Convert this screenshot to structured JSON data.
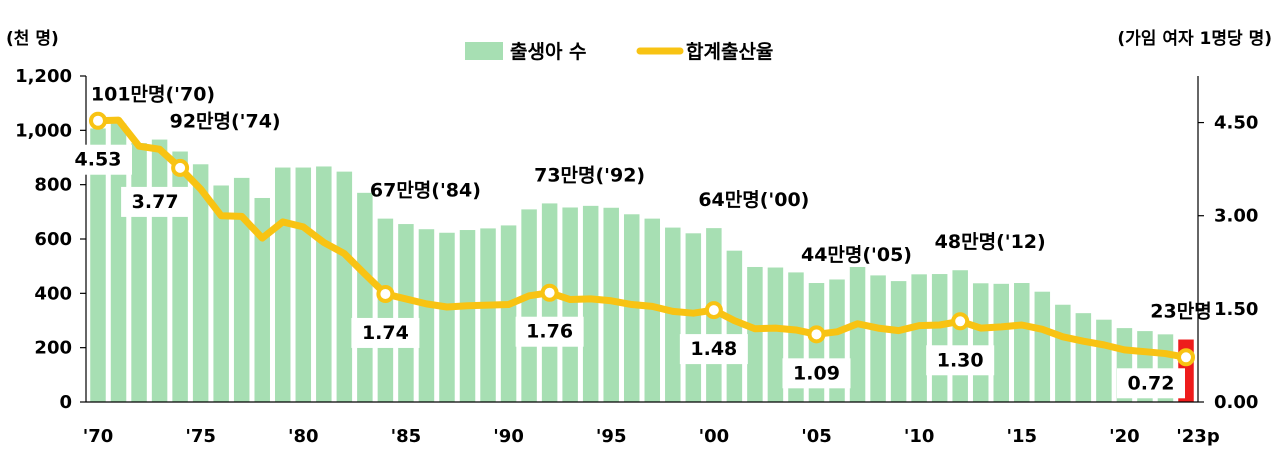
{
  "chart_data": {
    "type": "bar",
    "left_unit": "(천 명)",
    "right_unit": "(가임 여자 1명당 명)",
    "legend": {
      "bars": "출생아 수",
      "line": "합계출산율"
    },
    "left_axis": {
      "min": 0,
      "max": 1200,
      "ticks": [
        "0",
        "200",
        "400",
        "600",
        "800",
        "1,000",
        "1,200"
      ]
    },
    "right_axis": {
      "min": 0,
      "max": 5.25,
      "ticks": [
        "0.00",
        "1.50",
        "3.00",
        "4.50"
      ]
    },
    "x_tick_labels": [
      "'70",
      "'75",
      "'80",
      "'85",
      "'90",
      "'95",
      "'00",
      "'05",
      "'10",
      "'15",
      "'20",
      "'23p"
    ],
    "years": [
      1970,
      1971,
      1972,
      1973,
      1974,
      1975,
      1976,
      1977,
      1978,
      1979,
      1980,
      1981,
      1982,
      1983,
      1984,
      1985,
      1986,
      1987,
      1988,
      1989,
      1990,
      1991,
      1992,
      1993,
      1994,
      1995,
      1996,
      1997,
      1998,
      1999,
      2000,
      2001,
      2002,
      2003,
      2004,
      2005,
      2006,
      2007,
      2008,
      2009,
      2010,
      2011,
      2012,
      2013,
      2014,
      2015,
      2016,
      2017,
      2018,
      2019,
      2020,
      2021,
      2022,
      2023
    ],
    "births_thousand": [
      1007,
      1025,
      953,
      966,
      922,
      875,
      797,
      825,
      751,
      863,
      863,
      867,
      848,
      770,
      675,
      655,
      636,
      623,
      633,
      639,
      650,
      709,
      731,
      716,
      722,
      715,
      691,
      675,
      642,
      621,
      640,
      557,
      497,
      495,
      477,
      438,
      451,
      497,
      466,
      445,
      470,
      471,
      485,
      437,
      435,
      438,
      406,
      358,
      327,
      303,
      272,
      261,
      249,
      230
    ],
    "tfr": [
      4.53,
      4.54,
      4.12,
      4.07,
      3.77,
      3.43,
      3.0,
      2.99,
      2.64,
      2.9,
      2.82,
      2.57,
      2.39,
      2.06,
      1.74,
      1.66,
      1.58,
      1.53,
      1.55,
      1.56,
      1.57,
      1.71,
      1.76,
      1.65,
      1.66,
      1.63,
      1.57,
      1.54,
      1.46,
      1.43,
      1.48,
      1.31,
      1.18,
      1.19,
      1.16,
      1.09,
      1.13,
      1.26,
      1.19,
      1.15,
      1.23,
      1.24,
      1.3,
      1.19,
      1.21,
      1.24,
      1.17,
      1.05,
      0.98,
      0.92,
      0.84,
      0.81,
      0.78,
      0.72
    ],
    "highlight_year": 2023,
    "birth_annotations": [
      {
        "year": 1970,
        "text": "101만명('70)"
      },
      {
        "year": 1974,
        "text": "92만명('74)"
      },
      {
        "year": 1984,
        "text": "67만명('84)"
      },
      {
        "year": 1992,
        "text": "73만명('92)"
      },
      {
        "year": 2000,
        "text": "64만명('00)"
      },
      {
        "year": 2005,
        "text": "44만명('05)"
      },
      {
        "year": 2012,
        "text": "48만명('12)"
      },
      {
        "year": 2023,
        "text": "23만명"
      }
    ],
    "tfr_markers": [
      {
        "year": 1970,
        "text": "4.53"
      },
      {
        "year": 1974,
        "text": "3.77"
      },
      {
        "year": 1984,
        "text": "1.74"
      },
      {
        "year": 1992,
        "text": "1.76"
      },
      {
        "year": 2000,
        "text": "1.48"
      },
      {
        "year": 2005,
        "text": "1.09"
      },
      {
        "year": 2012,
        "text": "1.30"
      },
      {
        "year": 2023,
        "text": "0.72"
      }
    ],
    "colors": {
      "bar": "#a7dfb3",
      "bar_highlight": "#ee1c1c",
      "line": "#f8c313",
      "marker_fill": "#ffffff"
    }
  }
}
